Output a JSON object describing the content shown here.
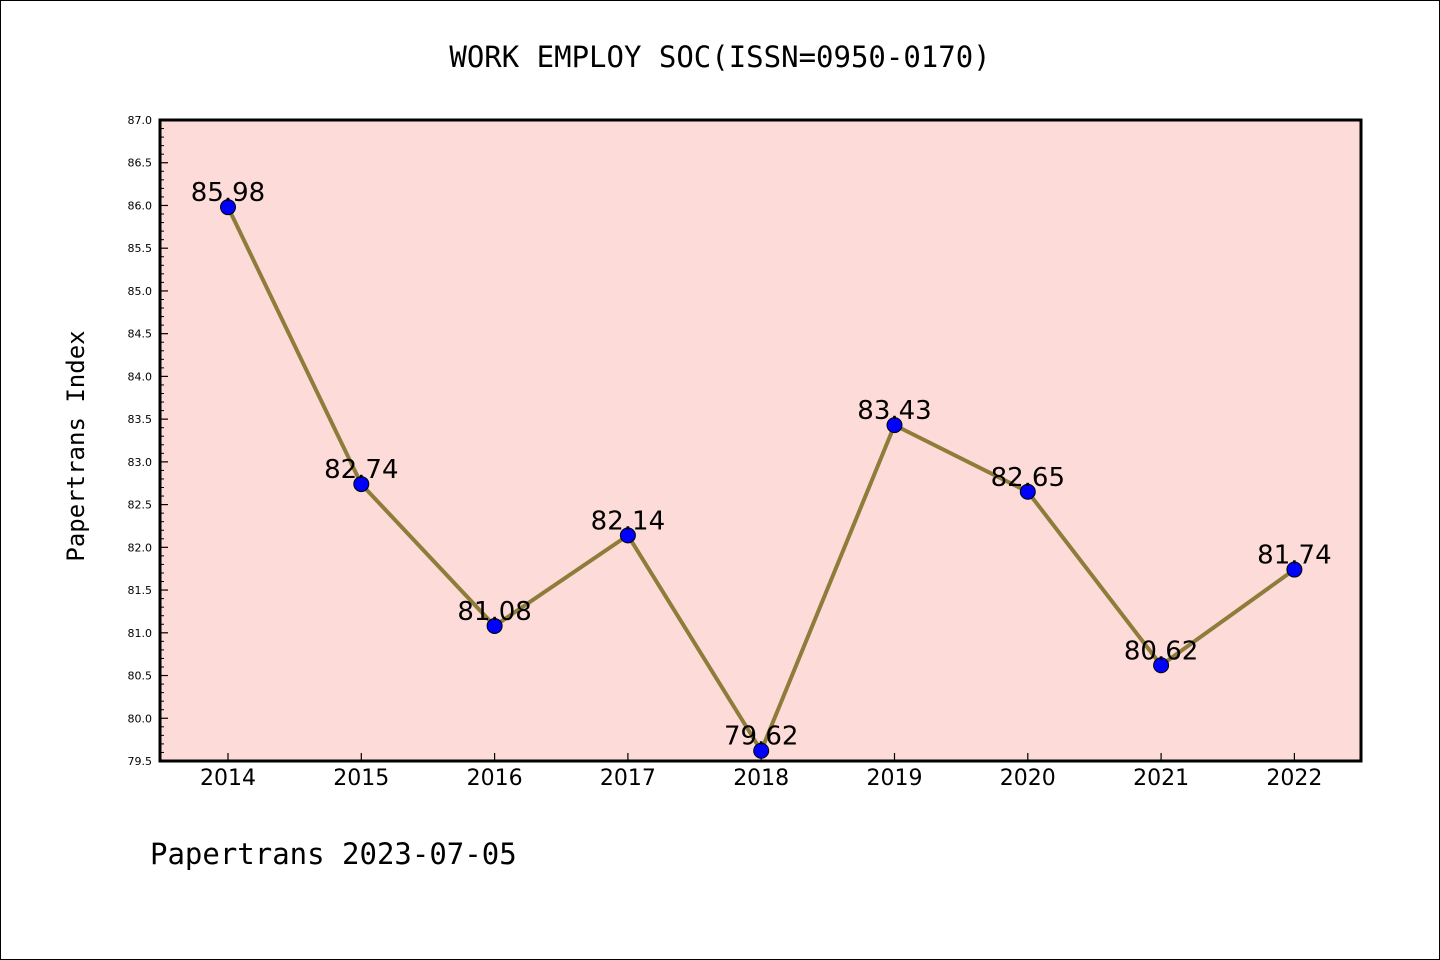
{
  "chart_data": {
    "type": "line",
    "title": "WORK EMPLOY SOC(ISSN=0950-0170)",
    "ylabel": "Papertrans Index",
    "xlabel": "",
    "footer": "Papertrans 2023-07-05",
    "x": [
      "2014",
      "2015",
      "2016",
      "2017",
      "2018",
      "2019",
      "2020",
      "2021",
      "2022"
    ],
    "series": [
      {
        "values": [
          85.98,
          82.74,
          81.08,
          82.14,
          79.62,
          83.43,
          82.65,
          80.62,
          81.74
        ],
        "labels": [
          "85.98",
          "82.74",
          "81.08",
          "82.14",
          "79.62",
          "83.43",
          "82.65",
          "80.62",
          "81.74"
        ]
      }
    ],
    "ylim": [
      79.5,
      87.0
    ],
    "yticks": [
      "79.5",
      "80.0",
      "80.5",
      "81.0",
      "81.5",
      "82.0",
      "82.5",
      "83.0",
      "83.5",
      "84.0",
      "84.5",
      "85.0",
      "85.5",
      "86.0",
      "86.5",
      "87.0"
    ],
    "grid": false,
    "colors": {
      "plot_background": "#fddbd8",
      "line": "#8e7d3a",
      "marker": "#0000ff"
    }
  }
}
